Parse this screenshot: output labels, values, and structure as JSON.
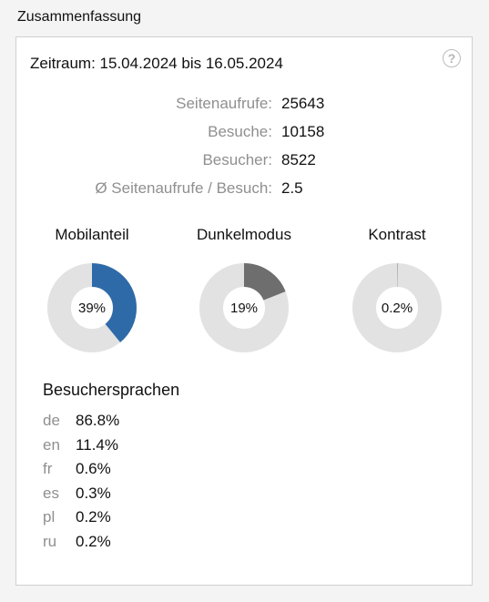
{
  "section": {
    "title": "Zusammenfassung"
  },
  "period": {
    "label": "Zeitraum:",
    "from": "15.04.2024",
    "joiner": "bis",
    "to": "16.05.2024"
  },
  "help": {
    "icon": "question-circle-icon",
    "glyph": "?"
  },
  "stats": [
    {
      "label": "Seitenaufrufe:",
      "value": "25643"
    },
    {
      "label": "Besuche:",
      "value": "10158"
    },
    {
      "label": "Besucher:",
      "value": "8522"
    },
    {
      "label": "Ø Seitenaufrufe / Besuch:",
      "value": "2.5"
    }
  ],
  "donuts": [
    {
      "title": "Mobilanteil",
      "percent_label": "39%",
      "fraction": 0.39,
      "color": "#2f6aa8"
    },
    {
      "title": "Dunkelmodus",
      "percent_label": "19%",
      "fraction": 0.19,
      "color": "#6e6e6e"
    },
    {
      "title": "Kontrast",
      "percent_label": "0.2%",
      "fraction": 0.002,
      "color": "#b0b0b0"
    }
  ],
  "donut_track_color": "#e2e2e2",
  "languages": {
    "title": "Besuchersprachen",
    "items": [
      {
        "code": "de",
        "value": "86.8%"
      },
      {
        "code": "en",
        "value": "11.4%"
      },
      {
        "code": "fr",
        "value": "0.6%"
      },
      {
        "code": "es",
        "value": "0.3%"
      },
      {
        "code": "pl",
        "value": "0.2%"
      },
      {
        "code": "ru",
        "value": "0.2%"
      }
    ]
  }
}
